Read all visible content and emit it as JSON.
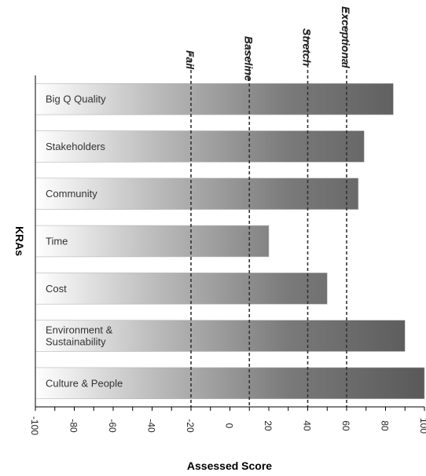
{
  "chart_data": {
    "type": "bar",
    "orientation": "horizontal",
    "categories": [
      "Big Q Quality",
      "Stakeholders",
      "Community",
      "Time",
      "Cost",
      "Environment & Sustainability",
      "Culture & People"
    ],
    "category_lines": [
      [
        "Big Q Quality"
      ],
      [
        "Stakeholders"
      ],
      [
        "Community"
      ],
      [
        "Time"
      ],
      [
        "Cost"
      ],
      [
        "Environment &",
        "Sustainability"
      ],
      [
        "Culture & People"
      ]
    ],
    "values": [
      84,
      69,
      66,
      20,
      50,
      90,
      100
    ],
    "xlabel": "Assessed Score",
    "ylabel": "KRAs",
    "xlim": [
      -100,
      100
    ],
    "major_ticks": [
      -100,
      -80,
      -60,
      -40,
      -20,
      0,
      20,
      40,
      60,
      80,
      100
    ],
    "minor_tick_step": 10,
    "reference_lines": [
      {
        "label": "Fail",
        "value": -20
      },
      {
        "label": "Baseline",
        "value": 10
      },
      {
        "label": "Stretch",
        "value": 40
      },
      {
        "label": "Exceptional",
        "value": 60
      }
    ],
    "bar_gradient": [
      "#ffffff",
      "#bdbdbd",
      "#7a7a7a",
      "#595959"
    ],
    "grid": false
  }
}
